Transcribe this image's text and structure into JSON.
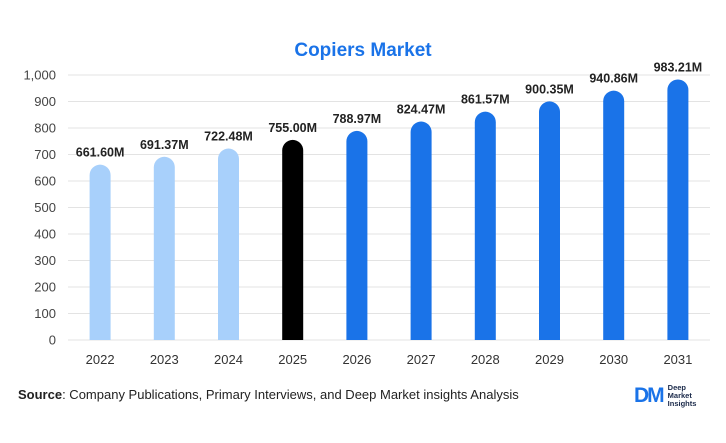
{
  "chart_data": {
    "type": "bar",
    "title": "Copiers Market",
    "categories": [
      "2022",
      "2023",
      "2024",
      "2025",
      "2026",
      "2027",
      "2028",
      "2029",
      "2030",
      "2031"
    ],
    "values": [
      661.6,
      691.37,
      722.48,
      755.0,
      788.97,
      824.47,
      861.57,
      900.35,
      940.86,
      983.21
    ],
    "data_labels": [
      "661.60M",
      "691.37M",
      "722.48M",
      "755.00M",
      "788.97M",
      "824.47M",
      "861.57M",
      "900.35M",
      "940.86M",
      "983.21M"
    ],
    "ylim": [
      0,
      1000
    ],
    "yticks": [
      0,
      100,
      200,
      300,
      400,
      500,
      600,
      700,
      800,
      900,
      1000
    ],
    "ytick_labels": [
      "0",
      "100",
      "200",
      "300",
      "400",
      "500",
      "600",
      "700",
      "800",
      "900",
      "1,000"
    ],
    "xlabel": "",
    "ylabel": "",
    "grid": true,
    "colors": {
      "historical": "#a8d0fb",
      "base_year": "#000000",
      "forecast": "#1a73e8"
    },
    "bar_color_groups": [
      "historical",
      "historical",
      "historical",
      "base_year",
      "forecast",
      "forecast",
      "forecast",
      "forecast",
      "forecast",
      "forecast"
    ]
  },
  "source": {
    "label": "Source",
    "text": ": Company Publications, Primary Interviews, and Deep Market insights Analysis"
  },
  "logo": {
    "mark": "DM",
    "lines": [
      "Deep",
      "Market",
      "Insights"
    ]
  }
}
